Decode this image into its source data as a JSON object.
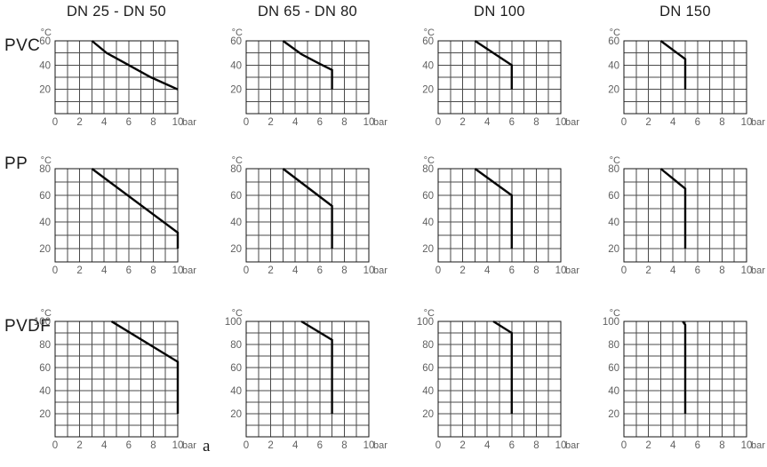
{
  "figure_label": "a",
  "columns": [
    "DN 25 - DN 50",
    "DN 65 - DN 80",
    "DN 100",
    "DN 150"
  ],
  "rows": [
    "PVC",
    "PP",
    "PVDF"
  ],
  "axis": {
    "y_unit": "°C",
    "x_unit": "bar",
    "x_ticks": [
      0,
      2,
      4,
      6,
      8,
      10
    ]
  },
  "colors": {
    "grid": "#4a4a4a",
    "axis_border": "#161616",
    "curve": "#050505",
    "tick_text": "#606060",
    "title_text": "#1c1c1c"
  },
  "chart_data": [
    {
      "type": "line",
      "material": "PVC",
      "dn": "DN 25 - DN 50",
      "xlabel": "bar",
      "ylabel": "°C",
      "xlim": [
        0,
        10
      ],
      "ylim": [
        0,
        60
      ],
      "x_ticks": [
        0,
        2,
        4,
        6,
        8,
        10
      ],
      "y_ticks": [
        20,
        40,
        60
      ],
      "points": [
        [
          3,
          60
        ],
        [
          4.2,
          50
        ],
        [
          6,
          40
        ],
        [
          7.8,
          30
        ],
        [
          10,
          20
        ]
      ]
    },
    {
      "type": "line",
      "material": "PVC",
      "dn": "DN 65 - DN 80",
      "xlabel": "bar",
      "ylabel": "°C",
      "xlim": [
        0,
        10
      ],
      "ylim": [
        0,
        60
      ],
      "x_ticks": [
        0,
        2,
        4,
        6,
        8,
        10
      ],
      "y_ticks": [
        20,
        40,
        60
      ],
      "points": [
        [
          3,
          60
        ],
        [
          4.5,
          49
        ],
        [
          6,
          41
        ],
        [
          7,
          36
        ],
        [
          7,
          20
        ]
      ]
    },
    {
      "type": "line",
      "material": "PVC",
      "dn": "DN 100",
      "xlabel": "bar",
      "ylabel": "°C",
      "xlim": [
        0,
        10
      ],
      "ylim": [
        0,
        60
      ],
      "x_ticks": [
        0,
        2,
        4,
        6,
        8,
        10
      ],
      "y_ticks": [
        20,
        40,
        60
      ],
      "points": [
        [
          3,
          60
        ],
        [
          6,
          40
        ],
        [
          6,
          20
        ]
      ]
    },
    {
      "type": "line",
      "material": "PVC",
      "dn": "DN 150",
      "xlabel": "bar",
      "ylabel": "°C",
      "xlim": [
        0,
        10
      ],
      "ylim": [
        0,
        60
      ],
      "x_ticks": [
        0,
        2,
        4,
        6,
        8,
        10
      ],
      "y_ticks": [
        20,
        40,
        60
      ],
      "points": [
        [
          3,
          60
        ],
        [
          5,
          45
        ],
        [
          5,
          20
        ]
      ]
    },
    {
      "type": "line",
      "material": "PP",
      "dn": "DN 25 - DN 50",
      "xlabel": "bar",
      "ylabel": "°C",
      "xlim": [
        0,
        10
      ],
      "ylim": [
        10,
        80
      ],
      "x_ticks": [
        0,
        2,
        4,
        6,
        8,
        10
      ],
      "y_ticks": [
        20,
        40,
        60,
        80
      ],
      "points": [
        [
          3,
          80
        ],
        [
          10,
          32
        ],
        [
          10,
          20
        ]
      ]
    },
    {
      "type": "line",
      "material": "PP",
      "dn": "DN 65 - DN 80",
      "xlabel": "bar",
      "ylabel": "°C",
      "xlim": [
        0,
        10
      ],
      "ylim": [
        10,
        80
      ],
      "x_ticks": [
        0,
        2,
        4,
        6,
        8,
        10
      ],
      "y_ticks": [
        20,
        40,
        60,
        80
      ],
      "points": [
        [
          3,
          80
        ],
        [
          7,
          52
        ],
        [
          7,
          20
        ]
      ]
    },
    {
      "type": "line",
      "material": "PP",
      "dn": "DN 100",
      "xlabel": "bar",
      "ylabel": "°C",
      "xlim": [
        0,
        10
      ],
      "ylim": [
        10,
        80
      ],
      "x_ticks": [
        0,
        2,
        4,
        6,
        8,
        10
      ],
      "y_ticks": [
        20,
        40,
        60,
        80
      ],
      "points": [
        [
          3,
          80
        ],
        [
          6,
          60
        ],
        [
          6,
          20
        ]
      ]
    },
    {
      "type": "line",
      "material": "PP",
      "dn": "DN 150",
      "xlabel": "bar",
      "ylabel": "°C",
      "xlim": [
        0,
        10
      ],
      "ylim": [
        10,
        80
      ],
      "x_ticks": [
        0,
        2,
        4,
        6,
        8,
        10
      ],
      "y_ticks": [
        20,
        40,
        60,
        80
      ],
      "points": [
        [
          3,
          80
        ],
        [
          5,
          65
        ],
        [
          5,
          20
        ]
      ]
    },
    {
      "type": "line",
      "material": "PVDF",
      "dn": "DN 25 - DN 50",
      "xlabel": "bar",
      "ylabel": "°C",
      "xlim": [
        0,
        10
      ],
      "ylim": [
        0,
        100
      ],
      "x_ticks": [
        0,
        2,
        4,
        6,
        8,
        10
      ],
      "y_ticks": [
        20,
        40,
        60,
        80,
        100
      ],
      "points": [
        [
          4.6,
          100
        ],
        [
          10,
          65
        ],
        [
          10,
          20
        ]
      ]
    },
    {
      "type": "line",
      "material": "PVDF",
      "dn": "DN 65 - DN 80",
      "xlabel": "bar",
      "ylabel": "°C",
      "xlim": [
        0,
        10
      ],
      "ylim": [
        0,
        100
      ],
      "x_ticks": [
        0,
        2,
        4,
        6,
        8,
        10
      ],
      "y_ticks": [
        20,
        40,
        60,
        80,
        100
      ],
      "points": [
        [
          4.5,
          100
        ],
        [
          7,
          84
        ],
        [
          7,
          20
        ]
      ]
    },
    {
      "type": "line",
      "material": "PVDF",
      "dn": "DN 100",
      "xlabel": "bar",
      "ylabel": "°C",
      "xlim": [
        0,
        10
      ],
      "ylim": [
        0,
        100
      ],
      "x_ticks": [
        0,
        2,
        4,
        6,
        8,
        10
      ],
      "y_ticks": [
        20,
        40,
        60,
        80,
        100
      ],
      "points": [
        [
          4.5,
          100
        ],
        [
          6,
          90
        ],
        [
          6,
          20
        ]
      ]
    },
    {
      "type": "line",
      "material": "PVDF",
      "dn": "DN 150",
      "xlabel": "bar",
      "ylabel": "°C",
      "xlim": [
        0,
        10
      ],
      "ylim": [
        0,
        100
      ],
      "x_ticks": [
        0,
        2,
        4,
        6,
        8,
        10
      ],
      "y_ticks": [
        20,
        40,
        60,
        80,
        100
      ],
      "points": [
        [
          4.8,
          100
        ],
        [
          5,
          97
        ],
        [
          5,
          20
        ]
      ]
    }
  ]
}
